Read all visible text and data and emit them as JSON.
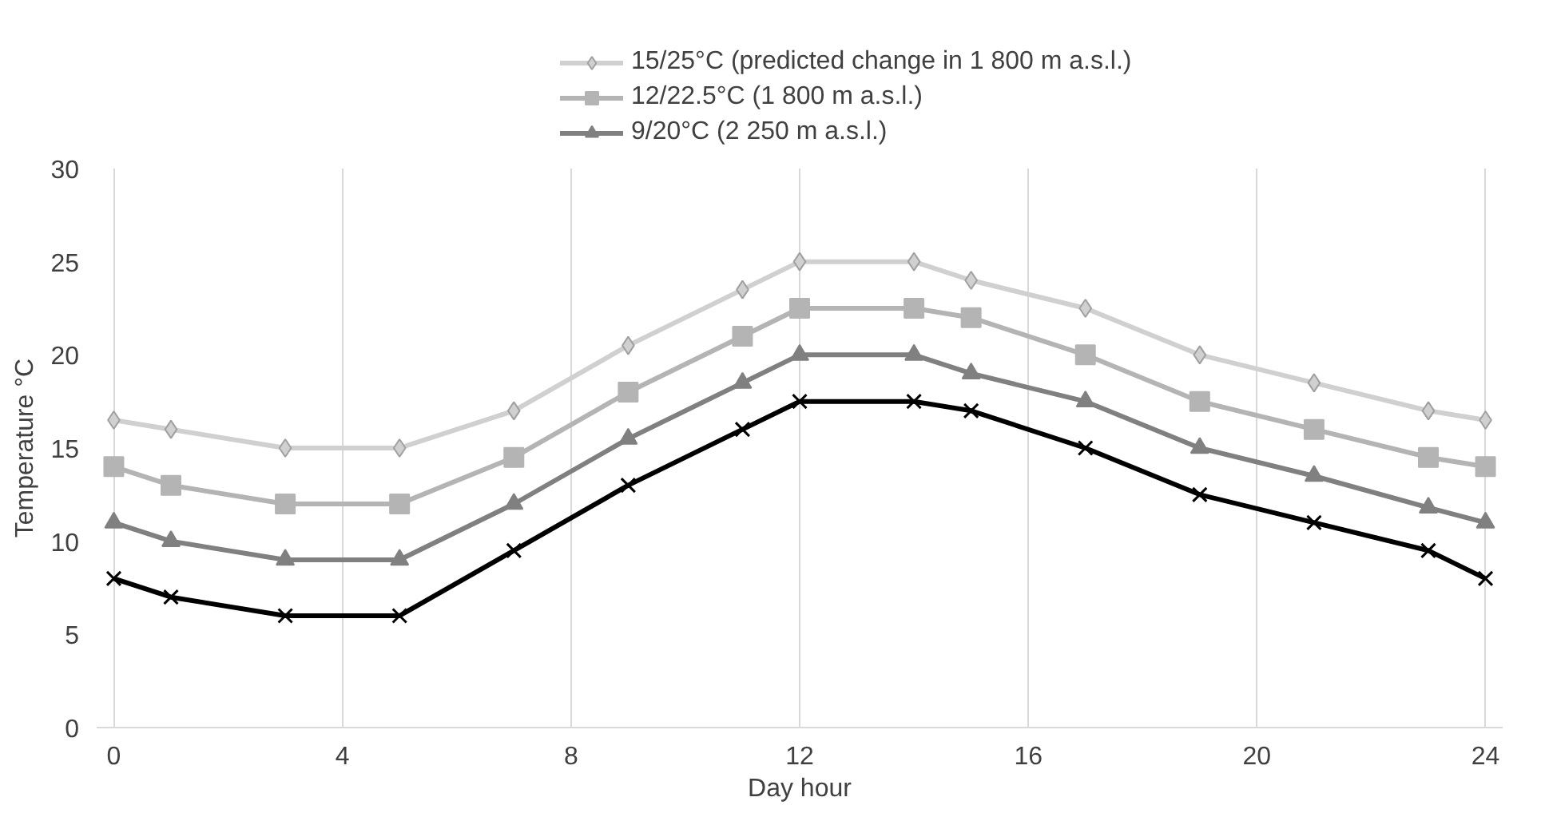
{
  "chart_data": {
    "type": "line",
    "xlabel": "Day hour",
    "ylabel": "Temperature °C",
    "x": [
      0,
      1,
      3,
      5,
      7,
      9,
      11,
      12,
      14,
      15,
      17,
      19,
      21,
      23,
      24
    ],
    "series": [
      {
        "name": "15/25°C (predicted change in 1 800 m a.s.l.)",
        "color": "#d0d0d0",
        "marker": "diamond",
        "values": [
          16.5,
          16,
          15,
          15,
          17,
          20.5,
          23.5,
          25,
          25,
          24,
          22.5,
          20,
          18.5,
          17,
          16.5
        ]
      },
      {
        "name": "12/22.5°C (1 800 m a.s.l.)",
        "color": "#b4b4b4",
        "marker": "square",
        "values": [
          14,
          13,
          12,
          12,
          14.5,
          18,
          21,
          22.5,
          22.5,
          22,
          20,
          17.5,
          16,
          14.5,
          14
        ]
      },
      {
        "name": "9/20°C (2 250 m a.s.l.)",
        "color": "#808080",
        "marker": "triangle",
        "values": [
          11,
          10,
          9,
          9,
          12,
          15.5,
          18.5,
          20,
          20,
          19,
          17.5,
          15,
          13.5,
          11.8,
          11
        ]
      },
      {
        "color": "#000000",
        "marker": "cross",
        "values": [
          8,
          7,
          6,
          6,
          9.5,
          13,
          16,
          17.5,
          17.5,
          17,
          15,
          12.5,
          11,
          9.5,
          8
        ]
      }
    ],
    "xlim": [
      -0.3,
      24.3
    ],
    "xticks": [
      0,
      4,
      8,
      12,
      16,
      20,
      24
    ],
    "ylim": [
      0,
      30
    ],
    "yticks": [
      0,
      5,
      10,
      15,
      20,
      25,
      30
    ],
    "grid": "x",
    "legend": "top",
    "line_style": "solid"
  }
}
